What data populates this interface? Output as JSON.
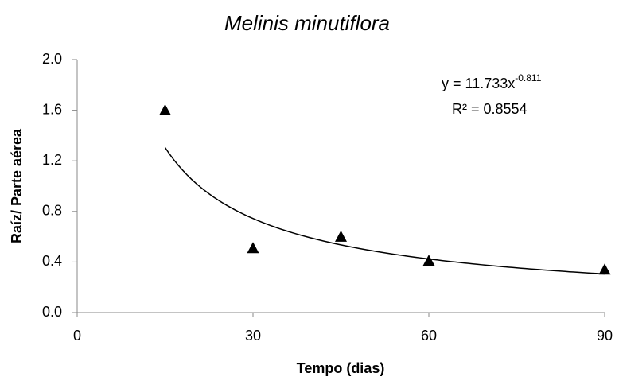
{
  "chart_data": {
    "type": "scatter",
    "title": "Melinis minutiflora",
    "x_label": "Tempo (dias)",
    "y_label": "Raíz/ Parte aérea",
    "series": [
      {
        "name": "Melinis minutiflora",
        "color": "#000000",
        "marker": "triangle",
        "x": [
          15,
          30,
          45,
          60,
          90
        ],
        "values": [
          1.6,
          0.51,
          0.6,
          0.41,
          0.34
        ]
      }
    ],
    "xlim": [
      0,
      90
    ],
    "xticks": [
      0,
      30,
      60,
      90
    ],
    "ylim": [
      0,
      2
    ],
    "yticks": [
      {
        "value": 0,
        "label": "0.0"
      },
      {
        "value": 0.4,
        "label": "0.4"
      },
      {
        "value": 0.8,
        "label": "0.8"
      },
      {
        "value": 1.2,
        "label": "1.2"
      },
      {
        "value": 1.6,
        "label": "1.6"
      },
      {
        "value": 2,
        "label": "2.0"
      }
    ],
    "grid": false,
    "trendline": {
      "kind": "power",
      "eq_prefix": "y = ",
      "a": 11.733,
      "eq_var": "x",
      "b": -0.811,
      "r2_prefix": "R² = ",
      "r2": 0.8554
    }
  }
}
